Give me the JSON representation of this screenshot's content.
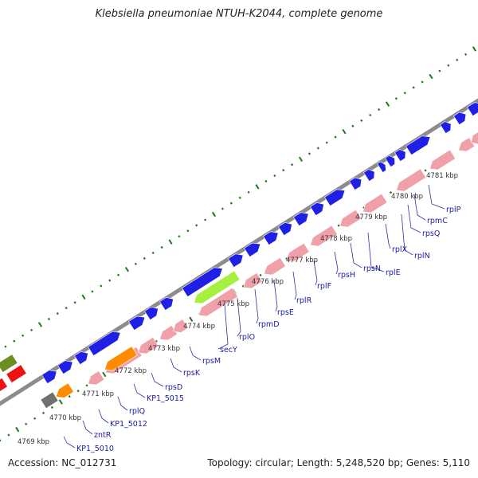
{
  "title": "Klebsiella pneumoniae NTUH-K2044, complete genome",
  "footer": {
    "accession": "Accession: NC_012731",
    "summary": "Topology: circular; Length: 5,248,520 bp; Genes: 5,110"
  },
  "colors": {
    "backbone": "#8c8c8c",
    "cds_forward": "#1f1fe6",
    "cds_reverse": "#f0a0a8",
    "tick": "#1a7a1a",
    "label": "#1a1aa0",
    "secY": "#a8f040",
    "orange": "#ff8c00",
    "grey": "#707070",
    "red": "#ee1111",
    "olive": "#6b8e23"
  },
  "scale_labels": [
    "4769 kbp",
    "4770 kbp",
    "4771 kbp",
    "4772 kbp",
    "4773 kbp",
    "4774 kbp",
    "4775 kbp",
    "4776 kbp",
    "4777 kbp",
    "4778 kbp",
    "4779 kbp",
    "4780 kbp",
    "4781 kbp"
  ],
  "gene_labels": [
    "KP1_5010",
    "zntR",
    "KP1_5012",
    "rplQ",
    "KP1_5015",
    "rpsD",
    "rpsK",
    "rpsM",
    "secY",
    "rplO",
    "rpmD",
    "rpsE",
    "rplR",
    "rplF",
    "rpsH",
    "rpsN",
    "rplE",
    "rplX",
    "rplN",
    "rpsQ",
    "rpmC",
    "rplP"
  ]
}
